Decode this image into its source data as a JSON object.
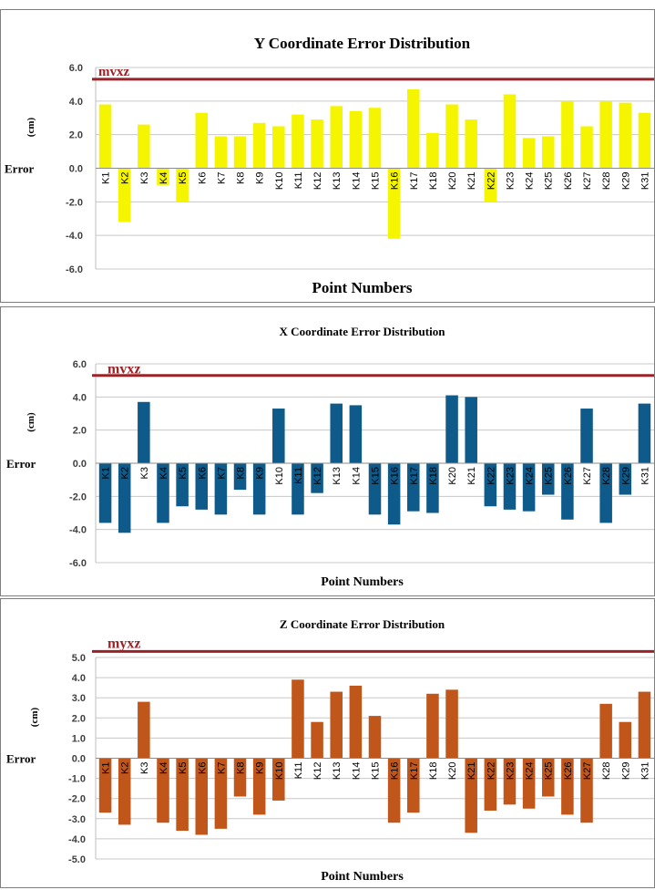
{
  "chart_data": [
    {
      "type": "bar",
      "title": "Y Coordinate Error Distribution",
      "xlabel": "Point Numbers",
      "ylabel": "Error",
      "ylabel_unit": "(cm)",
      "ylim": [
        -6.0,
        6.0
      ],
      "yticks": [
        "6.0",
        "4.0",
        "2.0",
        "0.0",
        "-2.0",
        "-4.0",
        "-6.0"
      ],
      "grid": true,
      "bar_color": "#f5f500",
      "reference_line": {
        "label": "mvxz",
        "value": 5.3,
        "color": "#9b2226"
      },
      "categories": [
        "K1",
        "K2",
        "K3",
        "K4",
        "K5",
        "K6",
        "K7",
        "K8",
        "K9",
        "K10",
        "K11",
        "K12",
        "K13",
        "K14",
        "K15",
        "K16",
        "K17",
        "K18",
        "K20",
        "K21",
        "K22",
        "K23",
        "K24",
        "K25",
        "K26",
        "K27",
        "K28",
        "K29",
        "K31"
      ],
      "values": [
        3.8,
        -3.2,
        2.6,
        -1.0,
        -2.0,
        3.3,
        1.9,
        1.9,
        2.7,
        2.5,
        3.2,
        2.9,
        3.7,
        3.4,
        3.6,
        -4.2,
        4.7,
        2.1,
        3.8,
        2.9,
        -2.0,
        4.4,
        1.8,
        1.9,
        4.0,
        2.5,
        4.0,
        3.9,
        3.3
      ]
    },
    {
      "type": "bar",
      "title": "X Coordinate Error Distribution",
      "xlabel": "Point Numbers",
      "ylabel": "Error",
      "ylabel_unit": "(cm)",
      "ylim": [
        -6.0,
        6.0
      ],
      "yticks": [
        "6.0",
        "4.0",
        "2.0",
        "0.0",
        "-2.0",
        "-4.0",
        "-6.0"
      ],
      "grid": true,
      "bar_color": "#0e5a8a",
      "reference_line": {
        "label": "mvxz",
        "value": 5.3,
        "color": "#9b2226"
      },
      "categories": [
        "K1",
        "K2",
        "K3",
        "K4",
        "K5",
        "K6",
        "K7",
        "K8",
        "K9",
        "K10",
        "K11",
        "K12",
        "K13",
        "K14",
        "K15",
        "K16",
        "K17",
        "K18",
        "K20",
        "K21",
        "K22",
        "K23",
        "K24",
        "K25",
        "K26",
        "K27",
        "K28",
        "K29",
        "K31"
      ],
      "values": [
        -3.6,
        -4.2,
        3.7,
        -3.6,
        -2.6,
        -2.8,
        -3.1,
        -1.6,
        -3.1,
        3.3,
        -3.1,
        -1.8,
        3.6,
        3.5,
        -3.1,
        -3.7,
        -2.9,
        -3.0,
        4.1,
        4.0,
        -2.6,
        -2.8,
        -2.9,
        -1.9,
        -3.4,
        3.3,
        -3.6,
        -1.9,
        3.6
      ]
    },
    {
      "type": "bar",
      "title": "Z Coordinate Error Distribution",
      "xlabel": "Point Numbers",
      "ylabel": "Error",
      "ylabel_unit": "(cm)",
      "ylim": [
        -5.0,
        5.0
      ],
      "yticks": [
        "5.0",
        "4.0",
        "3.0",
        "2.0",
        "1.0",
        "0.0",
        "-1.0",
        "-2.0",
        "-3.0",
        "-4.0",
        "-5.0"
      ],
      "grid": true,
      "bar_color": "#c0561a",
      "reference_line": {
        "label": "myxz",
        "value": 5.3,
        "color": "#9b2226"
      },
      "categories": [
        "K1",
        "K2",
        "K3",
        "K4",
        "K5",
        "K6",
        "K7",
        "K8",
        "K9",
        "K10",
        "K11",
        "K12",
        "K13",
        "K14",
        "K15",
        "K16",
        "K17",
        "K18",
        "K20",
        "K21",
        "K22",
        "K23",
        "K24",
        "K25",
        "K26",
        "K27",
        "K28",
        "K29",
        "K31"
      ],
      "values": [
        -2.7,
        -3.3,
        2.8,
        -3.2,
        -3.6,
        -3.8,
        -3.5,
        -1.9,
        -2.8,
        -2.1,
        3.9,
        1.8,
        3.3,
        3.6,
        2.1,
        -3.2,
        -2.7,
        3.2,
        3.4,
        -3.7,
        -2.6,
        -2.3,
        -2.5,
        -1.9,
        -2.8,
        -3.2,
        2.7,
        1.8,
        3.3
      ]
    }
  ]
}
